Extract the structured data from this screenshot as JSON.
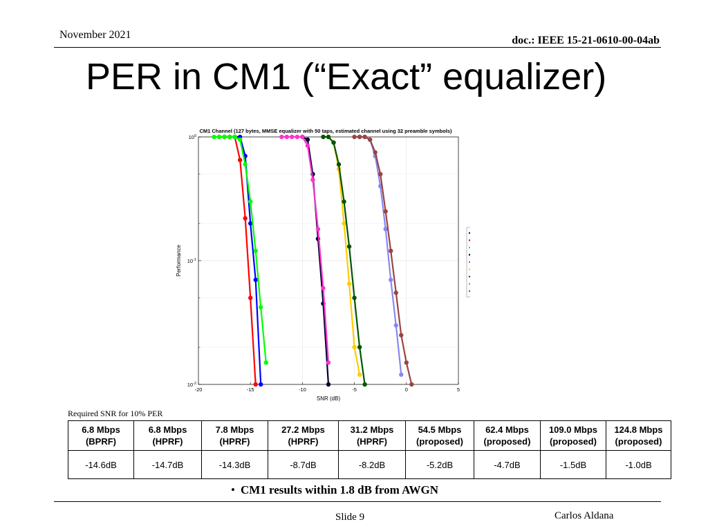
{
  "header": {
    "date": "November 2021",
    "doc": "doc.: IEEE 15-21-0610-00-04ab"
  },
  "title": "PER in CM1 (“Exact” equalizer)",
  "chart_data": {
    "type": "line",
    "title": "CM1 Channel (127 bytes, MMSE equalizer with 50 taps, estimated channel using 32 preamble symbols)",
    "xlabel": "SNR (dB)",
    "ylabel": "Performance",
    "xlim": [
      -20,
      5
    ],
    "ylim": [
      0.01,
      1
    ],
    "yscale": "log",
    "grid": true,
    "legend_position": "right",
    "xticks": [
      "-20",
      "-15",
      "-10",
      "-5",
      "0",
      "5"
    ],
    "series": [
      {
        "name": "PER (BPRF 6.8Mbps, -14.6dB)",
        "color": "#0000ff",
        "x": [
          -17.5,
          -17,
          -16.5,
          -16,
          -15.5,
          -15,
          -14.5,
          -14
        ],
        "y": [
          1,
          1,
          1,
          1,
          0.7,
          0.2,
          0.07,
          0.008
        ]
      },
      {
        "name": "PER (HPRF 6.8Mbps, DRHM_LR, CL3, -14.7dB)",
        "color": "#ff0000",
        "x": [
          -18,
          -17.5,
          -17,
          -16.5,
          -16,
          -15.5,
          -15,
          -14.5
        ],
        "y": [
          1,
          1,
          1,
          1,
          0.65,
          0.22,
          0.05,
          0.007
        ]
      },
      {
        "name": "PER (HPRF 7.8Mbps, DRHM_LR, CL7, -14.3dB)",
        "color": "#00ff00",
        "x": [
          -18.5,
          -18,
          -17.5,
          -17,
          -16.5,
          -16,
          -15.5,
          -15,
          -14.5,
          -14,
          -13.5
        ],
        "y": [
          1,
          1,
          1,
          1,
          1,
          0.95,
          0.6,
          0.3,
          0.12,
          0.042,
          0.015
        ]
      },
      {
        "name": "PER (HPRF 27.2Mbps, DRHM_HR, CL3, -8.7dB)",
        "color": "#000033",
        "x": [
          -10,
          -9.5,
          -9,
          -8.5,
          -8,
          -7.5
        ],
        "y": [
          1,
          0.95,
          0.5,
          0.15,
          0.045,
          0.01
        ]
      },
      {
        "name": "PER (HPRF 31.2Mbps, DRHM_HR, CL7, -8.2dB)",
        "color": "#ff33cc",
        "x": [
          -12,
          -11.5,
          -11,
          -10.5,
          -10,
          -9.5,
          -9,
          -8.5,
          -8,
          -7.5
        ],
        "y": [
          1,
          1,
          1,
          1,
          1,
          0.85,
          0.45,
          0.18,
          0.06,
          0.015
        ]
      },
      {
        "name": "PER (proposed 54.5Mbps, CL3, -5.2dB)",
        "color": "#ffcc00",
        "x": [
          -7.5,
          -7,
          -6.5,
          -6,
          -5.5,
          -5,
          -4.5
        ],
        "y": [
          1,
          0.9,
          0.55,
          0.2,
          0.065,
          0.02,
          0.012
        ]
      },
      {
        "name": "PER (proposed 62.4Mbps, CL7, -4.7dB)",
        "color": "#005500",
        "x": [
          -8,
          -7.5,
          -7,
          -6.5,
          -6,
          -5.5,
          -5,
          -4.5,
          -4
        ],
        "y": [
          1,
          1,
          0.9,
          0.6,
          0.3,
          0.13,
          0.05,
          0.02,
          0.01
        ]
      },
      {
        "name": "PER (proposed 109.0Mbps, CL3, -1.5dB)",
        "color": "#8888ee",
        "x": [
          -4.5,
          -4,
          -3.5,
          -3,
          -2.5,
          -2,
          -1.5,
          -1,
          -0.5
        ],
        "y": [
          1,
          1,
          0.95,
          0.7,
          0.4,
          0.18,
          0.07,
          0.03,
          0.012
        ]
      },
      {
        "name": "PER (proposed 124.8Mbps, CL7, -1.0dB )",
        "color": "#994444",
        "x": [
          -5,
          -4.5,
          -4,
          -3.5,
          -3,
          -2.5,
          -2,
          -1.5,
          -1,
          -0.5,
          0,
          0.5
        ],
        "y": [
          1,
          1,
          1,
          0.95,
          0.75,
          0.5,
          0.25,
          0.12,
          0.055,
          0.025,
          0.015,
          0.01
        ]
      }
    ]
  },
  "table": {
    "caption": "Required SNR for 10% PER",
    "headers": [
      [
        "6.8 Mbps",
        "(BPRF)"
      ],
      [
        "6.8 Mbps",
        "(HPRF)"
      ],
      [
        "7.8 Mbps",
        "(HPRF)"
      ],
      [
        "27.2 Mbps",
        "(HPRF)"
      ],
      [
        "31.2 Mbps",
        "(HPRF)"
      ],
      [
        "54.5 Mbps",
        "(proposed)"
      ],
      [
        "62.4 Mbps",
        "(proposed)"
      ],
      [
        "109.0 Mbps",
        "(proposed)"
      ],
      [
        "124.8 Mbps",
        "(proposed)"
      ]
    ],
    "values": [
      "-14.6dB",
      "-14.7dB",
      "-14.3dB",
      "-8.7dB",
      "-8.2dB",
      "-5.2dB",
      "-4.7dB",
      "-1.5dB",
      "-1.0dB"
    ]
  },
  "bullet": "CM1 results within 1.8 dB from AWGN",
  "footer": {
    "slide": "Slide 9",
    "author": "Carlos Aldana"
  }
}
